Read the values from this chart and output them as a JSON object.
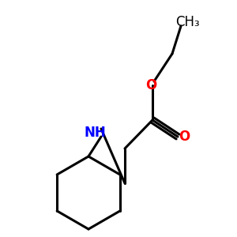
{
  "background_color": "#ffffff",
  "bond_color": "#000000",
  "nitrogen_color": "#0000ff",
  "oxygen_color": "#ff0000",
  "line_width": 2.2,
  "font_size": 12,
  "ch3_label": "CH₃",
  "nh_label": "NH",
  "o_label": "O"
}
